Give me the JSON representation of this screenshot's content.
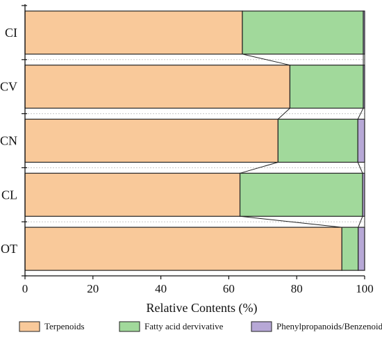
{
  "chart_data": {
    "type": "bar",
    "orientation": "horizontal",
    "stacked": true,
    "categories": [
      "CI",
      "CV",
      "CN",
      "CL",
      "OT"
    ],
    "series": [
      {
        "name": "Terpenoids",
        "color": "#f9c99a",
        "values": [
          64.0,
          78.0,
          74.5,
          63.3,
          93.3
        ]
      },
      {
        "name": "Fatty acid dervivative",
        "color": "#a1d99b",
        "values": [
          35.6,
          21.6,
          23.5,
          36.1,
          4.8
        ]
      },
      {
        "name": "Phenylpropanoids/Benzenoids",
        "color": "#b7a8d6",
        "values": [
          0.4,
          0.4,
          2.0,
          0.6,
          1.9
        ]
      }
    ],
    "xlabel": "Relative Contents (%)",
    "xlim": [
      0,
      100
    ],
    "xticks": [
      0,
      20,
      40,
      60,
      80,
      100
    ],
    "connector_lines": true,
    "legend_position": "bottom"
  }
}
